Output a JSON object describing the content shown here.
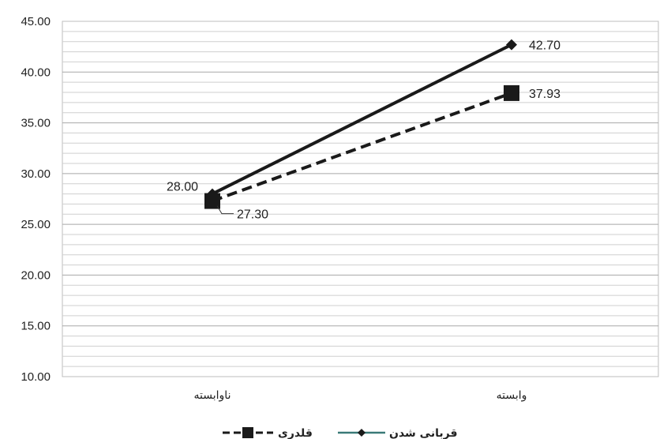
{
  "chart_data": {
    "type": "line",
    "title": "",
    "xlabel": "",
    "ylabel": "",
    "categories": [
      "ناوابسته",
      "وابسته"
    ],
    "series": [
      {
        "name": "قربانی شدن",
        "values": [
          28.0,
          42.7
        ],
        "value_labels": [
          "28.00",
          "42.70"
        ],
        "style": "solid",
        "marker": "diamond",
        "color": "#1a1a1a",
        "legend_color": "#3a7a78"
      },
      {
        "name": "قلدری",
        "values": [
          27.3,
          37.93
        ],
        "value_labels": [
          "27.30",
          "37.93"
        ],
        "style": "dashed",
        "marker": "square",
        "color": "#1a1a1a"
      }
    ],
    "ylim": [
      10,
      45
    ],
    "yticks": [
      "10.00",
      "15.00",
      "20.00",
      "25.00",
      "30.00",
      "35.00",
      "40.00",
      "45.00"
    ],
    "grid": true,
    "legend_position": "bottom"
  }
}
